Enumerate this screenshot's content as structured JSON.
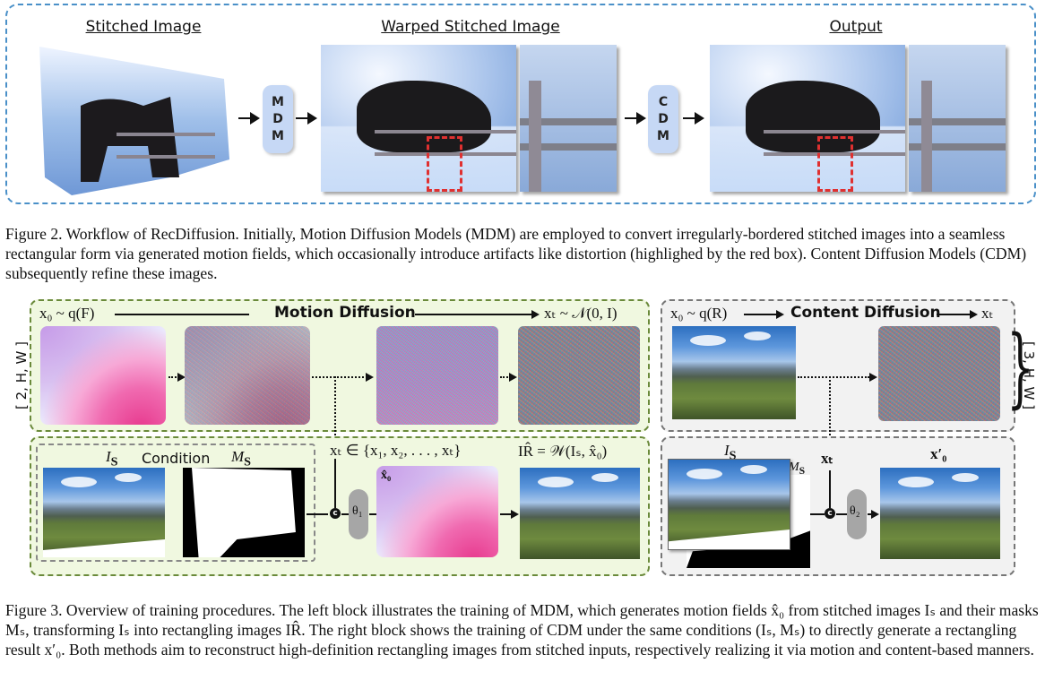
{
  "figure2": {
    "panel_titles": [
      "Stitched Image",
      "Warped Stitched Image",
      "Output"
    ],
    "mdm_letters": [
      "M",
      "D",
      "M"
    ],
    "cdm_letters": [
      "C",
      "D",
      "M"
    ],
    "caption": "Figure 2. Workflow of RecDiffusion. Initially, Motion Diffusion Models (MDM) are employed to convert irregularly-bordered stitched images into a seamless rectangular form via generated motion fields, which occasionally introduce artifacts like distortion (highlighed by the red box). Content Diffusion Models (CDM) subsequently refine these images.",
    "colors": {
      "dashed_border": "#4a90c8",
      "pill": "#c6d8f5",
      "red_box": "#e03030"
    }
  },
  "figure3": {
    "left": {
      "top_start": "x₀ ~ q(F)",
      "top_title": "Motion Diffusion",
      "top_end": "xₜ ~ 𝒩(0, I)",
      "dims": "[ 2, H, W ]",
      "condition_is": "I",
      "condition_is_sub": "S",
      "condition_label": "Condition",
      "condition_ms": "M",
      "condition_ms_sub": "S",
      "xt_set": "xₜ ∈ {x₁, x₂, . . . , xₜ}",
      "x0_hat": "x̂₀",
      "theta": "θ₁",
      "output_label": "IR̂ = 𝒲(Iₛ, x̂₀)"
    },
    "right": {
      "top_start": "x₀ ~ q(R)",
      "top_title": "Content Diffusion",
      "top_end": "xₜ",
      "dims": "[ 3, H, W ]",
      "is_label": "I",
      "is_sub": "S",
      "ms_label": "M",
      "ms_sub": "S",
      "xt": "xₜ",
      "theta": "θ₂",
      "output_label": "x′₀"
    },
    "concat_symbol": "c",
    "colors": {
      "left_bg": "#f0f8e0",
      "right_bg": "#f2f2f2",
      "motion_pink": "#e7388d",
      "motion_purple": "#c69be8"
    },
    "caption": "Figure 3. Overview of training procedures. The left block illustrates the training of MDM, which generates motion fields x̂₀ from stitched images Iₛ and their masks Mₛ, transforming Iₛ into rectangling images IR̂. The right block shows the training of CDM under the same conditions (Iₛ, Mₛ) to directly generate a rectangling result x′₀. Both methods aim to reconstruct high-definition rectangling images from stitched inputs, respectively realizing it via motion and content-based manners."
  }
}
